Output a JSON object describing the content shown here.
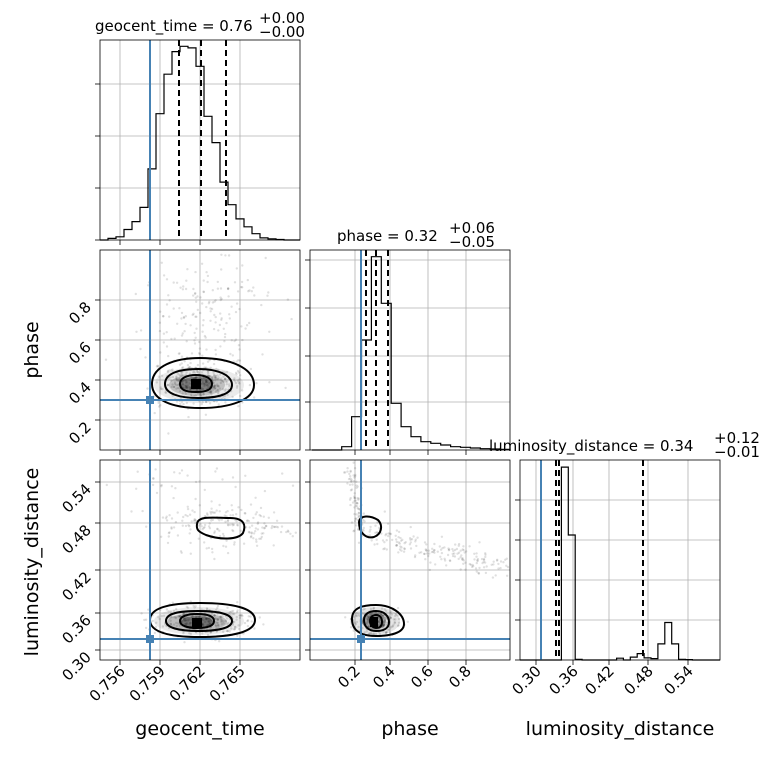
{
  "chart_data": [
    {
      "type": "histogram",
      "panel": "geocent_time",
      "title": {
        "text": "geocent_time = 0.76",
        "sup": "+0.00",
        "sub": "−0.00"
      },
      "bins_x": [
        0.7545,
        0.7555,
        0.7565,
        0.7575,
        0.7585,
        0.7595,
        0.7605,
        0.7615,
        0.7625,
        0.7635,
        0.7645,
        0.7655,
        0.7665
      ],
      "bin_width": 0.0005,
      "counts": [
        0,
        0.3,
        0.6,
        2,
        3.5,
        6.2,
        13.5,
        24,
        31.5,
        35.8,
        36.8,
        36.5,
        33,
        23.5,
        18.5,
        11,
        6.7,
        4,
        2.5,
        1.2,
        0.4,
        0.2,
        0.1,
        0,
        0
      ],
      "quantiles": [
        0.7601,
        0.7613,
        0.7626
      ],
      "truth": 0.7583,
      "ylim": [
        0,
        38
      ]
    },
    {
      "type": "histogram",
      "panel": "phase",
      "title": {
        "text": "phase = 0.32",
        "sup": "+0.06",
        "sub": "−0.05"
      },
      "counts": [
        0,
        0,
        0,
        1,
        10,
        33,
        58,
        44,
        14,
        7,
        4,
        2.5,
        2,
        1.5,
        1,
        0.8,
        0.6,
        0.4,
        0.3,
        0.2
      ],
      "quantiles": [
        0.27,
        0.32,
        0.38
      ],
      "truth": 0.25,
      "xlim": [
        0.05,
        0.98
      ],
      "ylim": [
        0,
        60
      ]
    },
    {
      "type": "histogram",
      "panel": "luminosity_distance",
      "title": {
        "text": "luminosity_distance = 0.34",
        "sup": "+0.12",
        "sub": "−0.01"
      },
      "counts": [
        0,
        0,
        0,
        0,
        0,
        0,
        54,
        35,
        0.2,
        0,
        0,
        0,
        0,
        0,
        0.5,
        0,
        0.8,
        1.8,
        0.6,
        0.4,
        4.5,
        10.5,
        4.5,
        0.2,
        0.1,
        0,
        0,
        0,
        0
      ],
      "quantiles": [
        0.333,
        0.336,
        0.463
      ],
      "truth": 0.31,
      "xlim": [
        0.285,
        0.565
      ],
      "ylim": [
        0,
        56
      ]
    },
    {
      "type": "scatter",
      "panel": "phase vs geocent_time",
      "x_label": "geocent_time",
      "y_label": "phase",
      "x_ticks": [
        "0.756",
        "0.759",
        "0.762",
        "0.765"
      ],
      "y_ticks": [
        "0.2",
        "0.4",
        "0.6",
        "0.8"
      ],
      "xlim": [
        0.7547,
        0.7675
      ],
      "ylim": [
        0.0,
        1.0
      ],
      "truth": {
        "x": 0.7583,
        "y": 0.25
      },
      "peak": {
        "x": 0.7612,
        "y": 0.32
      }
    },
    {
      "type": "scatter",
      "panel": "luminosity_distance vs geocent_time",
      "x_label": "geocent_time",
      "y_label": "luminosity_distance",
      "x_ticks": [
        "0.756",
        "0.759",
        "0.762",
        "0.765"
      ],
      "y_ticks": [
        "0.30",
        "0.36",
        "0.42",
        "0.48",
        "0.54"
      ],
      "xlim": [
        0.7547,
        0.7675
      ],
      "ylim": [
        0.285,
        0.565
      ],
      "truth": {
        "x": 0.7583,
        "y": 0.31
      },
      "peak": {
        "x": 0.7612,
        "y": 0.335
      }
    },
    {
      "type": "scatter",
      "panel": "luminosity_distance vs phase",
      "x_label": "phase",
      "y_label": "luminosity_distance",
      "x_ticks": [
        "0.2",
        "0.4",
        "0.6",
        "0.8"
      ],
      "y_ticks": [],
      "xlim": [
        0.05,
        0.98
      ],
      "ylim": [
        0.285,
        0.565
      ],
      "truth": {
        "x": 0.25,
        "y": 0.31
      },
      "peak": {
        "x": 0.32,
        "y": 0.335
      }
    }
  ],
  "labels": {
    "x_geocent": "geocent_time",
    "x_phase": "phase",
    "x_lum": "luminosity_distance",
    "y_phase": "phase",
    "y_lum": "luminosity_distance"
  },
  "ticks": {
    "geocent": [
      "0.756",
      "0.759",
      "0.762",
      "0.765"
    ],
    "phase": [
      "0.2",
      "0.4",
      "0.6",
      "0.8"
    ],
    "lum": [
      "0.30",
      "0.36",
      "0.42",
      "0.48",
      "0.54"
    ]
  },
  "colors": {
    "truth": "#4682b4",
    "points": "#000000",
    "grid": "#b0b0b0"
  }
}
